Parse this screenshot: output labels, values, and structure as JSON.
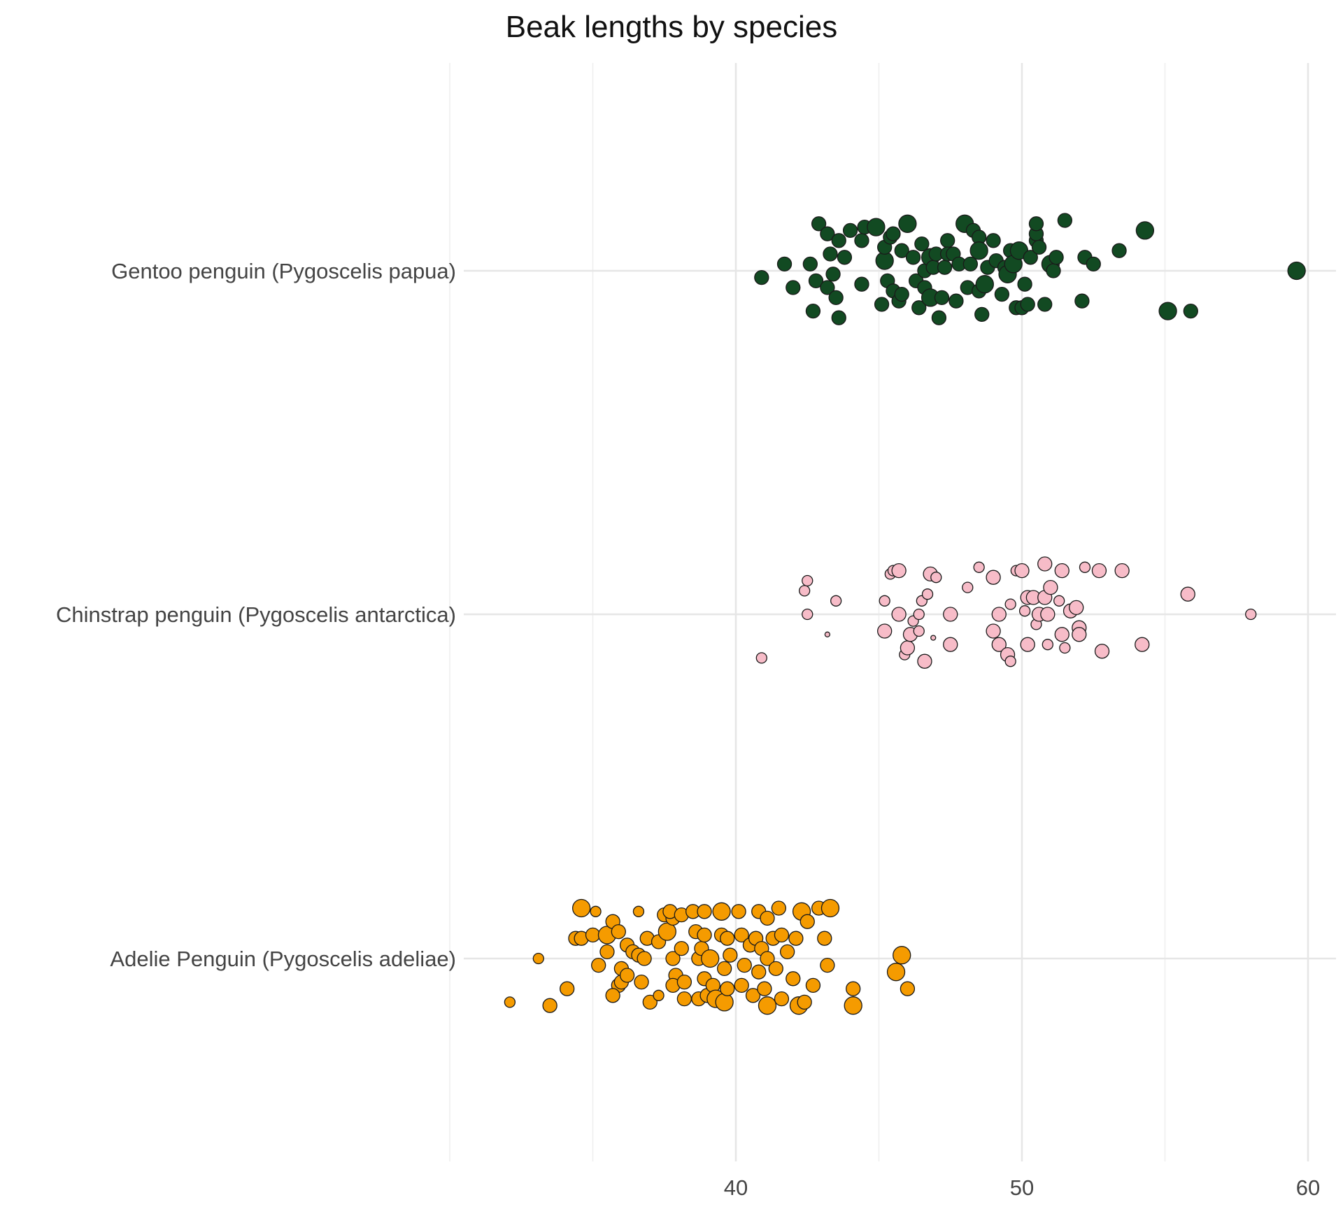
{
  "chart_data": {
    "type": "scatter",
    "title": "Beak lengths by species",
    "xlabel": "",
    "ylabel": "",
    "xlim": [
      29.5,
      61
    ],
    "x_ticks": [
      40,
      50,
      60
    ],
    "grid": true,
    "legend": "none",
    "categories": [
      "Adelie Penguin (Pygoscelis adeliae)",
      "Chinstrap penguin (Pygoscelis antarctica)",
      "Gentoo penguin (Pygoscelis papua)"
    ],
    "series": [
      {
        "category": "Adelie Penguin (Pygoscelis adeliae)",
        "color": "#f59b00",
        "points": [
          [
            32.1,
            -0.13,
            1
          ],
          [
            33.1,
            0.0,
            1
          ],
          [
            33.5,
            -0.14,
            2
          ],
          [
            34.1,
            -0.09,
            2
          ],
          [
            34.4,
            0.06,
            2
          ],
          [
            34.6,
            0.06,
            2
          ],
          [
            34.6,
            0.15,
            3
          ],
          [
            35.1,
            0.14,
            1
          ],
          [
            35.0,
            0.07,
            2
          ],
          [
            35.2,
            -0.02,
            2
          ],
          [
            35.5,
            0.07,
            3
          ],
          [
            35.5,
            0.02,
            2
          ],
          [
            35.7,
            0.11,
            2
          ],
          [
            35.9,
            0.08,
            2
          ],
          [
            35.9,
            -0.08,
            2
          ],
          [
            35.7,
            -0.11,
            2
          ],
          [
            36.0,
            -0.07,
            2
          ],
          [
            36.0,
            -0.03,
            2
          ],
          [
            36.2,
            0.04,
            2
          ],
          [
            36.2,
            -0.05,
            2
          ],
          [
            36.4,
            0.02,
            2
          ],
          [
            36.6,
            0.14,
            1
          ],
          [
            36.6,
            0.01,
            2
          ],
          [
            36.7,
            -0.07,
            2
          ],
          [
            36.8,
            0.0,
            2
          ],
          [
            36.9,
            0.06,
            2
          ],
          [
            37.0,
            -0.13,
            2
          ],
          [
            37.3,
            -0.11,
            1
          ],
          [
            37.3,
            0.05,
            2
          ],
          [
            37.5,
            0.13,
            2
          ],
          [
            37.6,
            0.08,
            3
          ],
          [
            37.8,
            0.12,
            2
          ],
          [
            37.7,
            0.14,
            2
          ],
          [
            37.8,
            0.0,
            2
          ],
          [
            37.9,
            -0.05,
            2
          ],
          [
            37.8,
            -0.08,
            2
          ],
          [
            38.1,
            0.13,
            2
          ],
          [
            38.1,
            0.03,
            2
          ],
          [
            38.2,
            -0.07,
            2
          ],
          [
            38.2,
            -0.12,
            2
          ],
          [
            38.5,
            0.14,
            2
          ],
          [
            38.6,
            0.08,
            2
          ],
          [
            38.7,
            0.0,
            2
          ],
          [
            38.7,
            -0.12,
            2
          ],
          [
            38.8,
            0.03,
            2
          ],
          [
            38.9,
            0.14,
            2
          ],
          [
            38.9,
            0.07,
            2
          ],
          [
            38.9,
            -0.06,
            2
          ],
          [
            39.0,
            -0.11,
            2
          ],
          [
            39.1,
            0.0,
            3
          ],
          [
            39.2,
            -0.08,
            2
          ],
          [
            39.3,
            -0.12,
            3
          ],
          [
            39.5,
            0.14,
            3
          ],
          [
            39.5,
            0.07,
            2
          ],
          [
            39.6,
            -0.03,
            2
          ],
          [
            39.6,
            -0.13,
            3
          ],
          [
            39.7,
            0.06,
            2
          ],
          [
            39.7,
            -0.09,
            2
          ],
          [
            39.8,
            0.01,
            2
          ],
          [
            40.1,
            0.14,
            2
          ],
          [
            40.2,
            0.07,
            2
          ],
          [
            40.2,
            -0.08,
            2
          ],
          [
            40.3,
            -0.02,
            2
          ],
          [
            40.5,
            0.04,
            2
          ],
          [
            40.6,
            -0.11,
            2
          ],
          [
            40.7,
            0.06,
            2
          ],
          [
            40.8,
            0.14,
            2
          ],
          [
            40.8,
            -0.04,
            2
          ],
          [
            40.9,
            0.03,
            2
          ],
          [
            41.0,
            -0.09,
            2
          ],
          [
            41.1,
            0.12,
            2
          ],
          [
            41.1,
            0.0,
            2
          ],
          [
            41.1,
            -0.14,
            3
          ],
          [
            41.3,
            0.06,
            2
          ],
          [
            41.4,
            -0.03,
            2
          ],
          [
            41.5,
            0.15,
            2
          ],
          [
            41.6,
            -0.12,
            2
          ],
          [
            41.6,
            0.07,
            2
          ],
          [
            41.8,
            0.02,
            2
          ],
          [
            42.0,
            -0.06,
            2
          ],
          [
            42.1,
            0.06,
            2
          ],
          [
            42.2,
            -0.14,
            3
          ],
          [
            42.3,
            0.14,
            3
          ],
          [
            42.4,
            -0.13,
            2
          ],
          [
            42.5,
            0.11,
            2
          ],
          [
            42.7,
            -0.08,
            2
          ],
          [
            42.9,
            0.15,
            2
          ],
          [
            43.1,
            0.06,
            2
          ],
          [
            43.2,
            -0.02,
            2
          ],
          [
            43.3,
            0.15,
            3
          ],
          [
            44.1,
            -0.09,
            2
          ],
          [
            44.1,
            -0.14,
            3
          ],
          [
            45.6,
            -0.04,
            3
          ],
          [
            45.8,
            0.01,
            3
          ],
          [
            46.0,
            -0.09,
            2
          ]
        ]
      },
      {
        "category": "Chinstrap penguin (Pygoscelis antarctica)",
        "color": "#f7bcc8",
        "points": [
          [
            40.9,
            -0.13,
            1
          ],
          [
            42.4,
            0.07,
            1
          ],
          [
            42.5,
            0.1,
            1
          ],
          [
            42.5,
            0.0,
            1
          ],
          [
            43.2,
            -0.06,
            0
          ],
          [
            43.5,
            0.04,
            1
          ],
          [
            45.2,
            0.04,
            1
          ],
          [
            45.2,
            -0.05,
            2
          ],
          [
            45.4,
            0.12,
            1
          ],
          [
            45.5,
            0.13,
            1
          ],
          [
            45.7,
            0.13,
            2
          ],
          [
            45.7,
            0.0,
            2
          ],
          [
            45.9,
            -0.12,
            1
          ],
          [
            46.0,
            -0.1,
            2
          ],
          [
            46.1,
            -0.06,
            2
          ],
          [
            46.2,
            -0.02,
            1
          ],
          [
            46.4,
            0.0,
            1
          ],
          [
            46.4,
            -0.05,
            1
          ],
          [
            46.5,
            0.04,
            1
          ],
          [
            46.6,
            -0.14,
            2
          ],
          [
            46.7,
            0.06,
            1
          ],
          [
            46.8,
            0.12,
            2
          ],
          [
            46.9,
            -0.07,
            0
          ],
          [
            47.0,
            0.11,
            1
          ],
          [
            47.5,
            -0.09,
            2
          ],
          [
            47.5,
            0.0,
            2
          ],
          [
            48.1,
            0.08,
            1
          ],
          [
            48.5,
            0.14,
            1
          ],
          [
            49.0,
            0.11,
            2
          ],
          [
            49.0,
            -0.05,
            2
          ],
          [
            49.2,
            0.0,
            2
          ],
          [
            49.2,
            -0.09,
            2
          ],
          [
            49.5,
            -0.12,
            2
          ],
          [
            49.6,
            -0.14,
            1
          ],
          [
            49.6,
            0.03,
            1
          ],
          [
            49.8,
            0.13,
            1
          ],
          [
            50.0,
            0.13,
            2
          ],
          [
            50.1,
            0.01,
            1
          ],
          [
            50.2,
            0.05,
            2
          ],
          [
            50.2,
            -0.09,
            2
          ],
          [
            50.4,
            0.05,
            2
          ],
          [
            50.5,
            -0.03,
            1
          ],
          [
            50.6,
            0.0,
            2
          ],
          [
            50.8,
            0.15,
            2
          ],
          [
            50.8,
            0.05,
            2
          ],
          [
            50.9,
            -0.09,
            1
          ],
          [
            50.9,
            0.0,
            2
          ],
          [
            51.0,
            0.08,
            2
          ],
          [
            51.3,
            0.04,
            1
          ],
          [
            51.4,
            0.13,
            2
          ],
          [
            51.4,
            -0.06,
            2
          ],
          [
            51.5,
            -0.1,
            1
          ],
          [
            51.7,
            0.01,
            2
          ],
          [
            51.9,
            0.02,
            2
          ],
          [
            52.0,
            -0.04,
            2
          ],
          [
            52.0,
            -0.06,
            2
          ],
          [
            52.2,
            0.14,
            1
          ],
          [
            52.7,
            0.13,
            2
          ],
          [
            52.8,
            -0.11,
            2
          ],
          [
            53.5,
            0.13,
            2
          ],
          [
            54.2,
            -0.09,
            2
          ],
          [
            55.8,
            0.06,
            2
          ],
          [
            58.0,
            0.0,
            1
          ]
        ]
      },
      {
        "category": "Gentoo penguin (Pygoscelis papua)",
        "color": "#124a22",
        "points": [
          [
            40.9,
            -0.02,
            2
          ],
          [
            41.7,
            0.02,
            2
          ],
          [
            42.0,
            -0.05,
            2
          ],
          [
            42.6,
            0.02,
            2
          ],
          [
            42.7,
            -0.12,
            2
          ],
          [
            42.8,
            -0.03,
            2
          ],
          [
            42.9,
            0.14,
            2
          ],
          [
            43.2,
            0.11,
            2
          ],
          [
            43.2,
            -0.05,
            2
          ],
          [
            43.3,
            0.05,
            2
          ],
          [
            43.4,
            -0.01,
            2
          ],
          [
            43.5,
            -0.08,
            2
          ],
          [
            43.6,
            0.09,
            2
          ],
          [
            43.6,
            -0.14,
            2
          ],
          [
            43.8,
            0.04,
            2
          ],
          [
            44.0,
            0.12,
            2
          ],
          [
            44.4,
            -0.04,
            2
          ],
          [
            44.4,
            0.09,
            2
          ],
          [
            44.5,
            0.13,
            2
          ],
          [
            44.9,
            0.13,
            3
          ],
          [
            45.1,
            -0.1,
            2
          ],
          [
            45.2,
            0.03,
            3
          ],
          [
            45.2,
            0.07,
            2
          ],
          [
            45.3,
            -0.03,
            2
          ],
          [
            45.4,
            0.1,
            2
          ],
          [
            45.5,
            0.11,
            2
          ],
          [
            45.5,
            -0.06,
            2
          ],
          [
            45.7,
            -0.09,
            2
          ],
          [
            45.8,
            0.06,
            2
          ],
          [
            45.8,
            -0.07,
            2
          ],
          [
            46.0,
            0.14,
            3
          ],
          [
            46.2,
            0.04,
            2
          ],
          [
            46.3,
            -0.03,
            2
          ],
          [
            46.4,
            -0.11,
            2
          ],
          [
            46.5,
            0.08,
            2
          ],
          [
            46.6,
            -0.05,
            2
          ],
          [
            46.6,
            0.0,
            2
          ],
          [
            46.8,
            0.04,
            3
          ],
          [
            46.8,
            -0.08,
            3
          ],
          [
            46.9,
            0.01,
            2
          ],
          [
            47.0,
            0.05,
            2
          ],
          [
            47.1,
            -0.14,
            2
          ],
          [
            47.2,
            -0.08,
            2
          ],
          [
            47.3,
            0.01,
            2
          ],
          [
            47.4,
            0.09,
            2
          ],
          [
            47.4,
            0.05,
            2
          ],
          [
            47.6,
            0.05,
            2
          ],
          [
            47.7,
            -0.09,
            2
          ],
          [
            47.8,
            0.02,
            2
          ],
          [
            48.0,
            0.14,
            3
          ],
          [
            48.1,
            -0.05,
            2
          ],
          [
            48.2,
            0.02,
            2
          ],
          [
            48.3,
            0.12,
            2
          ],
          [
            48.5,
            0.1,
            2
          ],
          [
            48.5,
            0.06,
            3
          ],
          [
            48.5,
            -0.06,
            2
          ],
          [
            48.6,
            -0.13,
            2
          ],
          [
            48.7,
            -0.04,
            3
          ],
          [
            48.8,
            0.01,
            2
          ],
          [
            49.0,
            0.09,
            2
          ],
          [
            49.1,
            0.03,
            2
          ],
          [
            49.3,
            -0.07,
            2
          ],
          [
            49.4,
            0.01,
            2
          ],
          [
            49.5,
            -0.01,
            3
          ],
          [
            49.6,
            0.06,
            2
          ],
          [
            49.7,
            0.02,
            3
          ],
          [
            49.8,
            -0.11,
            2
          ],
          [
            49.9,
            0.06,
            3
          ],
          [
            50.0,
            -0.11,
            2
          ],
          [
            50.1,
            -0.04,
            2
          ],
          [
            50.2,
            -0.1,
            2
          ],
          [
            50.3,
            0.04,
            2
          ],
          [
            50.5,
            0.09,
            2
          ],
          [
            50.5,
            0.11,
            2
          ],
          [
            50.5,
            0.14,
            2
          ],
          [
            50.6,
            0.07,
            2
          ],
          [
            50.8,
            -0.1,
            2
          ],
          [
            51.0,
            0.02,
            3
          ],
          [
            51.1,
            0.0,
            2
          ],
          [
            51.2,
            0.04,
            2
          ],
          [
            51.5,
            0.15,
            2
          ],
          [
            52.1,
            -0.09,
            2
          ],
          [
            52.2,
            0.04,
            2
          ],
          [
            52.5,
            0.02,
            2
          ],
          [
            53.4,
            0.06,
            2
          ],
          [
            54.3,
            0.12,
            3
          ],
          [
            55.1,
            -0.12,
            3
          ],
          [
            55.9,
            -0.12,
            2
          ],
          [
            59.6,
            0.0,
            3
          ]
        ]
      }
    ]
  }
}
